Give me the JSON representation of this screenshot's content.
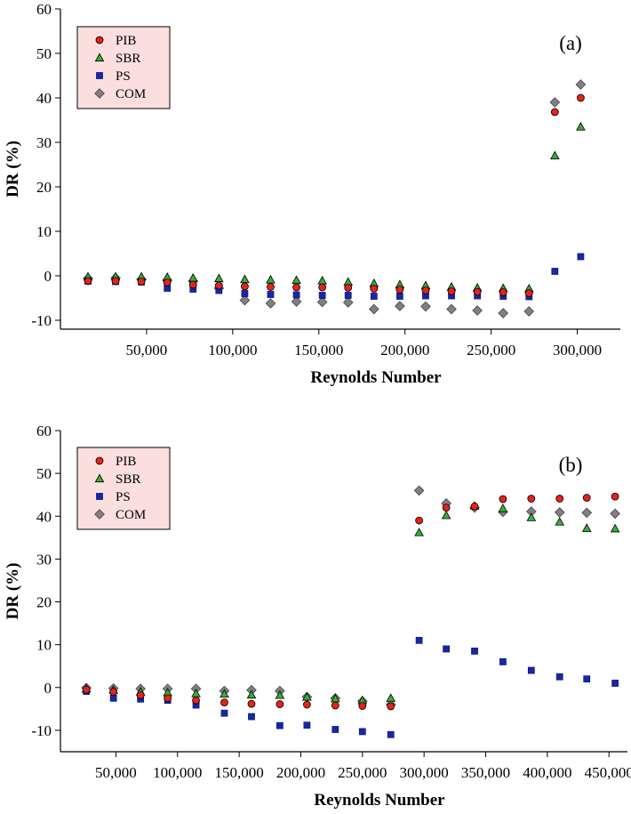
{
  "chart_data": [
    {
      "type": "scatter",
      "panel_label": "(a)",
      "xlabel": "Reynolds Number",
      "ylabel": "DR (%)",
      "xlim": [
        0,
        325000
      ],
      "ylim": [
        -12,
        60
      ],
      "x_ticks": [
        50000,
        100000,
        150000,
        200000,
        250000,
        300000
      ],
      "x_tick_labels": [
        "50,000",
        "100,000",
        "150,000",
        "200,000",
        "250,000",
        "300,000"
      ],
      "y_ticks": [
        -10,
        0,
        10,
        20,
        30,
        40,
        50,
        60
      ],
      "y_tick_labels": [
        "-10",
        "0",
        "10",
        "20",
        "30",
        "40",
        "50",
        "60"
      ],
      "legend_position": "top-left",
      "series": [
        {
          "name": "PIB",
          "marker": "circle",
          "color": "#e8211b",
          "points": [
            [
              16000,
              -1.2
            ],
            [
              32000,
              -1.2
            ],
            [
              47000,
              -1.3
            ],
            [
              62000,
              -1.5
            ],
            [
              77000,
              -2.0
            ],
            [
              92000,
              -2.2
            ],
            [
              107000,
              -2.4
            ],
            [
              122000,
              -2.5
            ],
            [
              137000,
              -2.6
            ],
            [
              152000,
              -2.6
            ],
            [
              167000,
              -2.7
            ],
            [
              182000,
              -2.9
            ],
            [
              197000,
              -3.1
            ],
            [
              212000,
              -3.3
            ],
            [
              227000,
              -3.5
            ],
            [
              242000,
              -3.6
            ],
            [
              257000,
              -3.7
            ],
            [
              272000,
              -3.9
            ],
            [
              287000,
              36.8
            ],
            [
              302000,
              40.0
            ]
          ]
        },
        {
          "name": "SBR",
          "marker": "triangle",
          "color": "#35b035",
          "points": [
            [
              16000,
              -0.2
            ],
            [
              32000,
              -0.2
            ],
            [
              47000,
              -0.2
            ],
            [
              62000,
              -0.3
            ],
            [
              77000,
              -0.5
            ],
            [
              92000,
              -0.6
            ],
            [
              107000,
              -0.8
            ],
            [
              122000,
              -0.9
            ],
            [
              137000,
              -1.0
            ],
            [
              152000,
              -1.1
            ],
            [
              167000,
              -1.4
            ],
            [
              182000,
              -1.7
            ],
            [
              197000,
              -2.0
            ],
            [
              212000,
              -2.2
            ],
            [
              227000,
              -2.5
            ],
            [
              242000,
              -2.7
            ],
            [
              257000,
              -2.8
            ],
            [
              272000,
              -2.9
            ],
            [
              287000,
              27.0
            ],
            [
              302000,
              33.5
            ]
          ]
        },
        {
          "name": "PS",
          "marker": "square",
          "color": "#1727a6",
          "points": [
            [
              16000,
              -1.2
            ],
            [
              32000,
              -1.3
            ],
            [
              47000,
              -1.4
            ],
            [
              62000,
              -2.8
            ],
            [
              77000,
              -3.0
            ],
            [
              92000,
              -3.3
            ],
            [
              107000,
              -4.0
            ],
            [
              122000,
              -4.2
            ],
            [
              137000,
              -4.3
            ],
            [
              152000,
              -4.4
            ],
            [
              167000,
              -4.4
            ],
            [
              182000,
              -4.6
            ],
            [
              197000,
              -4.6
            ],
            [
              212000,
              -4.5
            ],
            [
              227000,
              -4.5
            ],
            [
              242000,
              -4.5
            ],
            [
              257000,
              -4.6
            ],
            [
              272000,
              -4.7
            ],
            [
              287000,
              1.0
            ],
            [
              302000,
              4.3
            ]
          ]
        },
        {
          "name": "COM",
          "marker": "diamond",
          "color": "#808080",
          "points": [
            [
              16000,
              -0.6
            ],
            [
              32000,
              -0.5
            ],
            [
              47000,
              -0.8
            ],
            [
              62000,
              -1.0
            ],
            [
              77000,
              -1.2
            ],
            [
              92000,
              -2.8
            ],
            [
              107000,
              -5.5
            ],
            [
              122000,
              -6.2
            ],
            [
              137000,
              -5.8
            ],
            [
              152000,
              -5.9
            ],
            [
              167000,
              -6.0
            ],
            [
              182000,
              -7.5
            ],
            [
              197000,
              -6.8
            ],
            [
              212000,
              -6.9
            ],
            [
              227000,
              -7.5
            ],
            [
              242000,
              -7.8
            ],
            [
              257000,
              -8.4
            ],
            [
              272000,
              -8.0
            ],
            [
              287000,
              39.0
            ],
            [
              302000,
              43.0
            ]
          ]
        }
      ]
    },
    {
      "type": "scatter",
      "panel_label": "(b)",
      "xlabel": "Reynolds Number",
      "ylabel": "DR (%)",
      "xlim": [
        5000,
        465000
      ],
      "ylim": [
        -15,
        60
      ],
      "x_ticks": [
        50000,
        100000,
        150000,
        200000,
        250000,
        300000,
        350000,
        400000,
        450000
      ],
      "x_tick_labels": [
        "50,000",
        "100,000",
        "150,000",
        "200,000",
        "250,000",
        "300,000",
        "350,000",
        "400,000",
        "450,000"
      ],
      "y_ticks": [
        -10,
        0,
        10,
        20,
        30,
        40,
        50,
        60
      ],
      "y_tick_labels": [
        "-10",
        "0",
        "10",
        "20",
        "30",
        "40",
        "50",
        "60"
      ],
      "legend_position": "top-left",
      "series": [
        {
          "name": "PIB",
          "marker": "circle",
          "color": "#e8211b",
          "points": [
            [
              26000,
              -0.5
            ],
            [
              48000,
              -1.0
            ],
            [
              70000,
              -1.8
            ],
            [
              92000,
              -2.5
            ],
            [
              115000,
              -3.0
            ],
            [
              138000,
              -3.5
            ],
            [
              160000,
              -3.8
            ],
            [
              183000,
              -3.9
            ],
            [
              205000,
              -4.0
            ],
            [
              228000,
              -4.2
            ],
            [
              250000,
              -4.3
            ],
            [
              273000,
              -4.4
            ],
            [
              296000,
              39.0
            ],
            [
              318000,
              42.0
            ],
            [
              341000,
              42.3
            ],
            [
              364000,
              44.0
            ],
            [
              387000,
              44.1
            ],
            [
              410000,
              44.1
            ],
            [
              432000,
              44.3
            ],
            [
              455000,
              44.6
            ]
          ]
        },
        {
          "name": "SBR",
          "marker": "triangle",
          "color": "#35b035",
          "points": [
            [
              26000,
              -0.3
            ],
            [
              48000,
              -0.6
            ],
            [
              70000,
              -1.0
            ],
            [
              92000,
              -1.2
            ],
            [
              115000,
              -1.4
            ],
            [
              138000,
              -1.5
            ],
            [
              160000,
              -1.7
            ],
            [
              183000,
              -1.8
            ],
            [
              205000,
              -2.2
            ],
            [
              228000,
              -2.6
            ],
            [
              250000,
              -3.0
            ],
            [
              273000,
              -2.5
            ],
            [
              296000,
              36.2
            ],
            [
              318000,
              40.2
            ],
            [
              341000,
              42.4
            ],
            [
              364000,
              41.8
            ],
            [
              387000,
              39.7
            ],
            [
              410000,
              38.7
            ],
            [
              432000,
              37.2
            ],
            [
              455000,
              37.1
            ]
          ]
        },
        {
          "name": "PS",
          "marker": "square",
          "color": "#1727a6",
          "points": [
            [
              26000,
              -0.9
            ],
            [
              48000,
              -2.5
            ],
            [
              70000,
              -2.7
            ],
            [
              92000,
              -3.0
            ],
            [
              115000,
              -4.1
            ],
            [
              138000,
              -6.0
            ],
            [
              160000,
              -6.8
            ],
            [
              183000,
              -8.9
            ],
            [
              205000,
              -8.8
            ],
            [
              228000,
              -9.8
            ],
            [
              250000,
              -10.3
            ],
            [
              273000,
              -11.0
            ],
            [
              296000,
              11.0
            ],
            [
              318000,
              9.0
            ],
            [
              341000,
              8.5
            ],
            [
              364000,
              6.0
            ],
            [
              387000,
              4.0
            ],
            [
              410000,
              2.5
            ],
            [
              432000,
              2.0
            ],
            [
              455000,
              1.0
            ]
          ]
        },
        {
          "name": "COM",
          "marker": "diamond",
          "color": "#808080",
          "points": [
            [
              26000,
              -0.1
            ],
            [
              48000,
              -0.2
            ],
            [
              70000,
              -0.3
            ],
            [
              92000,
              -0.3
            ],
            [
              115000,
              -0.3
            ],
            [
              138000,
              -0.8
            ],
            [
              160000,
              -0.6
            ],
            [
              183000,
              -0.8
            ],
            [
              205000,
              -2.2
            ],
            [
              228000,
              -2.5
            ],
            [
              250000,
              -3.2
            ],
            [
              273000,
              -4.0
            ],
            [
              296000,
              46.0
            ],
            [
              318000,
              43.0
            ],
            [
              341000,
              42.0
            ],
            [
              364000,
              41.0
            ],
            [
              387000,
              41.1
            ],
            [
              410000,
              40.9
            ],
            [
              432000,
              40.8
            ],
            [
              455000,
              40.6
            ]
          ]
        }
      ]
    }
  ]
}
